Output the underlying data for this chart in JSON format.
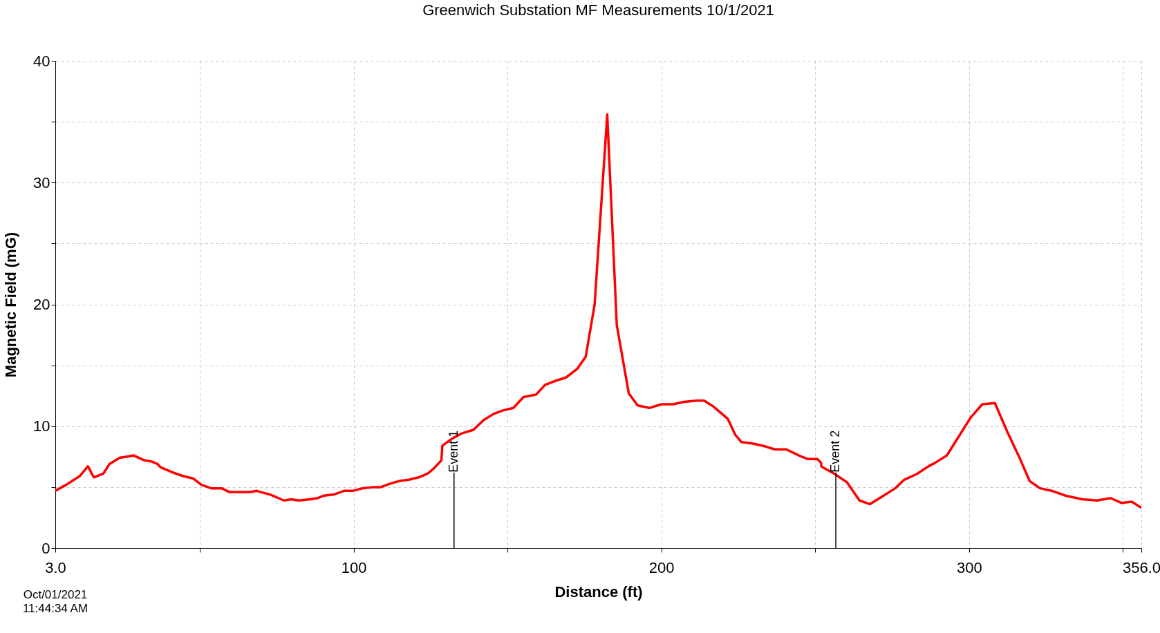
{
  "chart_data": {
    "type": "line",
    "title": "Greenwich Substation MF Measurements 10/1/2021",
    "xlabel": "Distance (ft)",
    "ylabel": "Magnetic Field (mG)",
    "x": [
      3,
      6.6,
      10.9,
      13.6,
      15.5,
      18.6,
      20.6,
      23.9,
      26.3,
      28.5,
      31.9,
      34.3,
      36.2,
      37.4,
      41.2,
      44.6,
      47.9,
      50.4,
      53.7,
      57.1,
      59.5,
      63.1,
      66.5,
      68.4,
      69.6,
      72.7,
      77.3,
      79.7,
      82.1,
      85.9,
      88.4,
      90.3,
      93.7,
      97,
      99.9,
      102.8,
      106.2,
      108.8,
      112,
      114.8,
      117.9,
      121.1,
      124,
      125.9,
      128.5,
      128.8,
      132.1,
      135,
      138.9,
      142.2,
      145.4,
      148.5,
      151.9,
      155.2,
      159.3,
      162.2,
      165.3,
      169,
      172.6,
      175.4,
      178.3,
      182.4,
      185.5,
      189.4,
      192.3,
      196.1,
      200,
      203.8,
      207.4,
      211.5,
      213.9,
      217,
      221.6,
      224,
      226,
      229.3,
      232.9,
      236.8,
      240.6,
      244.7,
      247.6,
      250.7,
      251.9,
      252,
      256.2,
      260.3,
      264.4,
      267.8,
      271.6,
      276,
      278.9,
      283.2,
      286.8,
      289,
      292.8,
      300.5,
      304.3,
      308.4,
      312.5,
      316.6,
      319.7,
      323.1,
      326.9,
      331.3,
      336.8,
      341.6,
      346,
      349.6,
      352.9,
      356
    ],
    "series": [
      {
        "color": "#ff0000",
        "values": [
          4.7,
          5.2,
          5.9,
          6.7,
          5.8,
          6.1,
          6.9,
          7.4,
          7.5,
          7.6,
          7.2,
          7.1,
          6.9,
          6.6,
          6.2,
          5.9,
          5.7,
          5.2,
          4.9,
          4.9,
          4.6,
          4.6,
          4.6,
          4.7,
          4.6,
          4.4,
          3.9,
          4,
          3.9,
          4,
          4.1,
          4.3,
          4.4,
          4.7,
          4.7,
          4.9,
          5,
          5,
          5.3,
          5.5,
          5.6,
          5.8,
          6.1,
          6.5,
          7.2,
          8.4,
          9,
          9.4,
          9.7,
          10.5,
          11,
          11.3,
          11.5,
          12.4,
          12.6,
          13.4,
          13.7,
          14,
          14.7,
          15.7,
          20,
          35.6,
          18.3,
          12.7,
          11.7,
          11.5,
          11.8,
          11.8,
          12,
          12.1,
          12.1,
          11.6,
          10.6,
          9.3,
          8.7,
          8.6,
          8.4,
          8.1,
          8.1,
          7.6,
          7.3,
          7.3,
          7,
          6.7,
          6.1,
          5.4,
          3.9,
          3.6,
          4.2,
          4.9,
          5.6,
          6.1,
          6.7,
          7,
          7.6,
          10.7,
          11.8,
          11.9,
          9.5,
          7.3,
          5.5,
          4.9,
          4.7,
          4.3,
          4,
          3.9,
          4.1,
          3.7,
          3.8,
          3.3
        ]
      }
    ],
    "xlim": [
      3,
      356
    ],
    "xticks": [
      {
        "value": 3,
        "label": "3.0"
      },
      {
        "value": 50,
        "label": null
      },
      100,
      {
        "value": 150,
        "label": null
      },
      200,
      {
        "value": 250,
        "label": null
      },
      300,
      {
        "value": 350,
        "label": null
      },
      {
        "value": 356,
        "label": "356.0"
      }
    ],
    "ylim": [
      0,
      40
    ],
    "yticks": [
      0,
      {
        "value": 5,
        "label": null
      },
      10,
      {
        "value": 15,
        "label": null
      },
      20,
      {
        "value": 25,
        "label": null
      },
      30,
      {
        "value": 35,
        "label": null
      },
      40
    ],
    "grid": true,
    "line_style": "solid",
    "ref_lines": [
      {
        "axis": "x",
        "value": 132.6,
        "label": "Event 1",
        "color": "#000000"
      },
      {
        "axis": "x",
        "value": 256.7,
        "label": "Event 2",
        "color": "#000000"
      }
    ],
    "annotations": [
      "Oct/01/2021",
      "11:44:34 AM"
    ]
  }
}
